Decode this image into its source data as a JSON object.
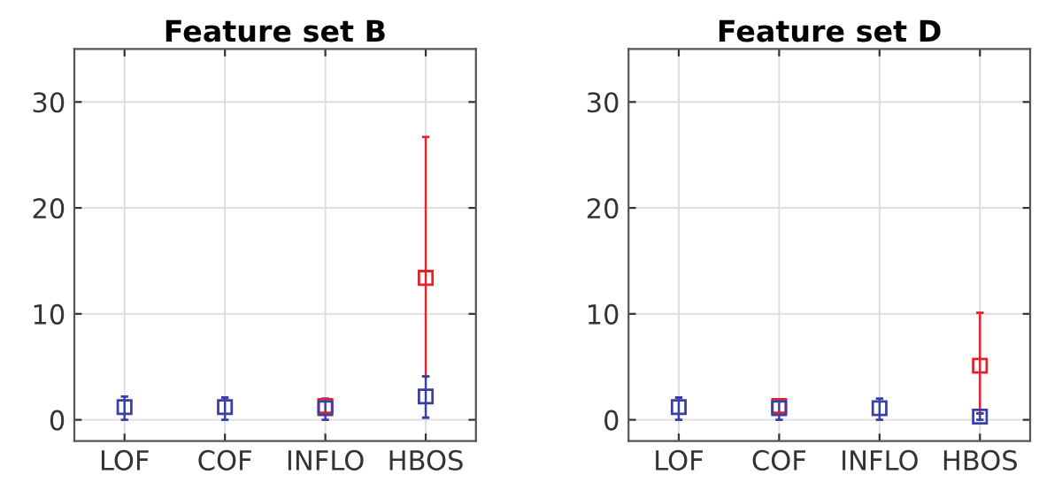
{
  "chart_data": [
    {
      "type": "scatter",
      "title": "Feature set B",
      "categories": [
        "LOF",
        "COF",
        "INFLO",
        "HBOS"
      ],
      "ylim": [
        -2,
        35
      ],
      "yticks": [
        0,
        10,
        20,
        30
      ],
      "grid": true,
      "marker": "square",
      "series": [
        {
          "color": "#e0242c",
          "values": [
            null,
            null,
            1.3,
            13.4
          ],
          "errors": [
            null,
            null,
            null,
            [
              4.1,
              26.7
            ]
          ]
        },
        {
          "color": "#3a3fa8",
          "values": [
            1.2,
            1.2,
            1.1,
            2.2
          ],
          "errors": [
            [
              0,
              2.2
            ],
            [
              0,
              2.1
            ],
            [
              0,
              2.0
            ],
            [
              0.2,
              4.1
            ]
          ]
        }
      ]
    },
    {
      "type": "scatter",
      "title": "Feature set D",
      "categories": [
        "LOF",
        "COF",
        "INFLO",
        "HBOS"
      ],
      "ylim": [
        -2,
        35
      ],
      "yticks": [
        0,
        10,
        20,
        30
      ],
      "grid": true,
      "marker": "square",
      "series": [
        {
          "color": "#e0242c",
          "values": [
            null,
            1.3,
            null,
            5.1
          ],
          "errors": [
            null,
            null,
            null,
            [
              0.6,
              10.1
            ]
          ]
        },
        {
          "color": "#3a3fa8",
          "values": [
            1.2,
            1.1,
            1.1,
            0.3
          ],
          "errors": [
            [
              0,
              2.1
            ],
            [
              0,
              1.9
            ],
            [
              0,
              2.0
            ],
            [
              0,
              0.6
            ]
          ]
        }
      ]
    }
  ]
}
